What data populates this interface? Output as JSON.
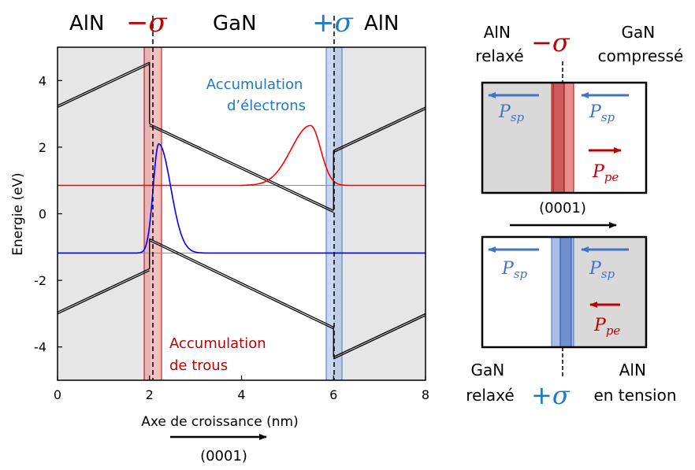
{
  "chart_data": {
    "type": "line",
    "xlabel": "Axe de croissance (nm)",
    "ylabel": "Energie (eV)",
    "xlim": [
      0,
      8
    ],
    "ylim": [
      -5,
      5
    ],
    "x_ticks": [
      "0",
      "2",
      "4",
      "6",
      "8"
    ],
    "y_ticks": [
      "4",
      "2",
      "0",
      "-2",
      "-4"
    ],
    "direction_label": "(0001)",
    "region_labels": [
      "AlN",
      "GaN",
      "AlN"
    ],
    "interfaces": [
      {
        "x": 2.0,
        "symbol": "σ",
        "sign": "−",
        "color": "#c00000"
      },
      {
        "x": 6.0,
        "symbol": "σ",
        "sign": "+",
        "color": "#1f78c8"
      }
    ],
    "annotations": {
      "electrons": [
        "Accumulation",
        "d’électrons"
      ],
      "holes": [
        "Accumulation",
        "de trous"
      ]
    },
    "series": [
      {
        "kind": "conduction band",
        "color": "#000000",
        "segments": [
          [
            [
              0,
              3.25
            ],
            [
              2.0,
              4.55
            ]
          ],
          [
            [
              2.0,
              2.7
            ],
            [
              6.0,
              0.1
            ]
          ],
          [
            [
              6.0,
              1.9
            ],
            [
              8.0,
              3.2
            ]
          ]
        ]
      },
      {
        "kind": "valence band",
        "color": "#000000",
        "segments": [
          [
            [
              0,
              -2.95
            ],
            [
              2.0,
              -1.65
            ]
          ],
          [
            [
              2.0,
              -0.75
            ],
            [
              6.0,
              -3.4
            ]
          ],
          [
            [
              6.0,
              -4.3
            ],
            [
              8.0,
              -3.0
            ]
          ]
        ]
      },
      {
        "kind": "electron level",
        "color": "#ff0000",
        "level": 0.85,
        "peak_x": 5.5,
        "peak_y": 2.65
      },
      {
        "kind": "hole level",
        "color": "#0000ff",
        "level": -1.18,
        "peak_x": 2.2,
        "peak_y": 2.1
      }
    ]
  },
  "schematic": {
    "top": {
      "left_labels": [
        "AlN",
        "relaxé"
      ],
      "right_labels": [
        "GaN",
        "compressé"
      ],
      "sigma": {
        "sign": "−",
        "symbol": "σ"
      },
      "arrow_labels": [
        {
          "main": "P",
          "sub": "sp",
          "color": "#4472c4"
        },
        {
          "main": "P",
          "sub": "sp",
          "color": "#4472c4"
        },
        {
          "main": "P",
          "sub": "pe",
          "color": "#c00000"
        }
      ],
      "direction_label": "(0001)"
    },
    "bottom": {
      "left_labels": [
        "GaN",
        "relaxé"
      ],
      "right_labels": [
        "AlN",
        "en tension"
      ],
      "sigma": {
        "sign": "+",
        "symbol": "σ"
      },
      "arrow_labels": [
        {
          "main": "P",
          "sub": "sp",
          "color": "#4472c4"
        },
        {
          "main": "P",
          "sub": "sp",
          "color": "#4472c4"
        },
        {
          "main": "P",
          "sub": "pe",
          "color": "#c00000"
        }
      ]
    }
  }
}
